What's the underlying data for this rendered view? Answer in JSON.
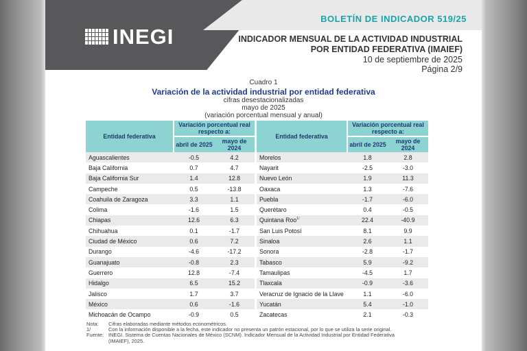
{
  "header": {
    "logo_text": "INEGI",
    "bulletin": "BOLETÍN DE INDICADOR 519/25",
    "title": "INDICADOR MENSUAL DE LA ACTIVIDAD INDUSTRIAL POR ENTIDAD FEDERATIVA (IMAIEF)",
    "date": "10 de septiembre de 2025",
    "page": "Página 2/9"
  },
  "caption": {
    "number": "Cuadro 1",
    "title": "Variación de la actividad industrial por entidad federativa",
    "line1": "cifras desestacionalizadas",
    "line2": "mayo de 2025",
    "line3": "(variación porcentual mensual y anual)"
  },
  "table_headers": {
    "entity": "Entidad federativa",
    "group": "Variación porcentual real respecto a:",
    "col1": "abril de 2025",
    "col2": "mayo de 2024"
  },
  "left_rows": [
    {
      "name": "Aguascalientes",
      "abr": "-0.5",
      "may": "4.2"
    },
    {
      "name": "Baja California",
      "abr": "0.7",
      "may": "4.7"
    },
    {
      "name": "Baja California Sur",
      "abr": "1.4",
      "may": "12.8"
    },
    {
      "name": "Campeche",
      "abr": "0.5",
      "may": "-13.8"
    },
    {
      "name": "Coahuila de Zaragoza",
      "abr": "3.3",
      "may": "1.1"
    },
    {
      "name": "Colima",
      "abr": "-1.6",
      "may": "1.5"
    },
    {
      "name": "Chiapas",
      "abr": "12.6",
      "may": "6.3"
    },
    {
      "name": "Chihuahua",
      "abr": "0.1",
      "may": "-1.7"
    },
    {
      "name": "Ciudad de México",
      "abr": "0.6",
      "may": "7.2"
    },
    {
      "name": "Durango",
      "abr": "-4.6",
      "may": "-17.2"
    },
    {
      "name": "Guanajuato",
      "abr": "-0.8",
      "may": "2.3"
    },
    {
      "name": "Guerrero",
      "abr": "12.8",
      "may": "-7.4"
    },
    {
      "name": "Hidalgo",
      "abr": "6.5",
      "may": "15.2"
    },
    {
      "name": "Jalisco",
      "abr": "1.7",
      "may": "3.7"
    },
    {
      "name": "México",
      "abr": "0.6",
      "may": "-1.6"
    },
    {
      "name": "Michoacán de Ocampo",
      "abr": "-0.9",
      "may": "0.5"
    }
  ],
  "right_rows": [
    {
      "name": "Morelos",
      "abr": "1.8",
      "may": "2.8"
    },
    {
      "name": "Nayarit",
      "abr": "-2.5",
      "may": "-3.0"
    },
    {
      "name": "Nuevo León",
      "abr": "1.9",
      "may": "11.3"
    },
    {
      "name": "Oaxaca",
      "abr": "1.3",
      "may": "-7.6"
    },
    {
      "name": "Puebla",
      "abr": "-1.7",
      "may": "-6.0"
    },
    {
      "name": "Querétaro",
      "abr": "0.4",
      "may": "-0.5"
    },
    {
      "name": "Quintana Roo",
      "sup": "1/",
      "abr": "22.4",
      "may": "-40.9"
    },
    {
      "name": "San Luis Potosí",
      "abr": "8.1",
      "may": "9.9"
    },
    {
      "name": "Sinaloa",
      "abr": "2.6",
      "may": "1.1"
    },
    {
      "name": "Sonora",
      "abr": "-2.8",
      "may": "-1.7"
    },
    {
      "name": "Tabasco",
      "abr": "5.9",
      "may": "-9.2"
    },
    {
      "name": "Tamaulipas",
      "abr": "-4.5",
      "may": "1.7"
    },
    {
      "name": "Tlaxcala",
      "abr": "-0.9",
      "may": "-3.6"
    },
    {
      "name": "Veracruz de Ignacio de la Llave",
      "abr": "1.1",
      "may": "-6.0"
    },
    {
      "name": "Yucatán",
      "abr": "5.4",
      "may": "-1.0"
    },
    {
      "name": "Zacatecas",
      "abr": "2.1",
      "may": "-0.3"
    }
  ],
  "notes": {
    "nota_label": "Nota:",
    "nota_text": "Cifras elaboradas mediante métodos econométricos.",
    "foot_label": "1/",
    "foot_text": "Con la información disponible a la fecha, este indicador no presenta un patrón estacional, por lo que se utiliza la serie original.",
    "fuente_label": "Fuente:",
    "fuente_text": "INEGI. Sistema de Cuentas Nacionales de México (SCNM). Indicador Mensual de la Actividad Industrial por Entidad Federativa",
    "fuente_text2": "(IMAIEF), 2025."
  },
  "colors": {
    "header_dark": "#58585a",
    "accent_teal": "#1aa3a6",
    "table_header": "#8dd3d2",
    "caption_blue": "#1f3c8a"
  }
}
